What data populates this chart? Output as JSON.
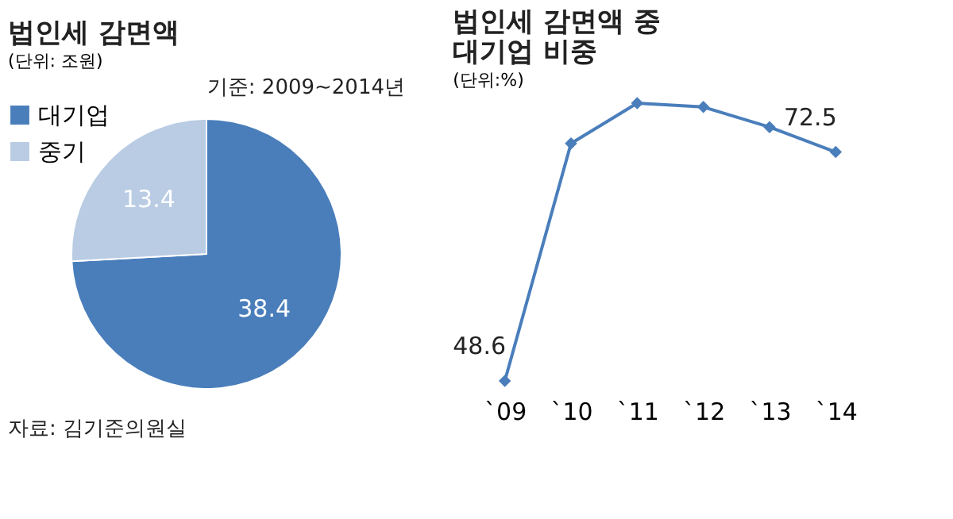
{
  "chart_data": [
    {
      "type": "pie",
      "title": "법인세 감면액",
      "subtitle": "(단위: 조원)",
      "categories": [
        "대기업",
        "중기"
      ],
      "values": [
        38.4,
        13.4
      ],
      "colors": [
        "#4a7ebb",
        "#b9cce4"
      ],
      "data_labels": true,
      "legend": "top left",
      "annotations": [
        "기준: 2009~2014년",
        "자료: 김기준의원실"
      ]
    },
    {
      "type": "line",
      "title": [
        "법인세 감면액 중",
        "대기업 비중"
      ],
      "subtitle": "(단위:%)",
      "categories": [
        "`09",
        "`10",
        "`11",
        "`12",
        "`13",
        "`14"
      ],
      "series": [
        {
          "color": "#4a7ebb",
          "values": [
            48.6,
            73.4,
            77.6,
            77.2,
            75.1,
            72.5
          ],
          "value_labels": [
            "48.6",
            null,
            null,
            null,
            null,
            "72.5"
          ]
        }
      ],
      "marker": "diamond",
      "grid": false
    }
  ]
}
